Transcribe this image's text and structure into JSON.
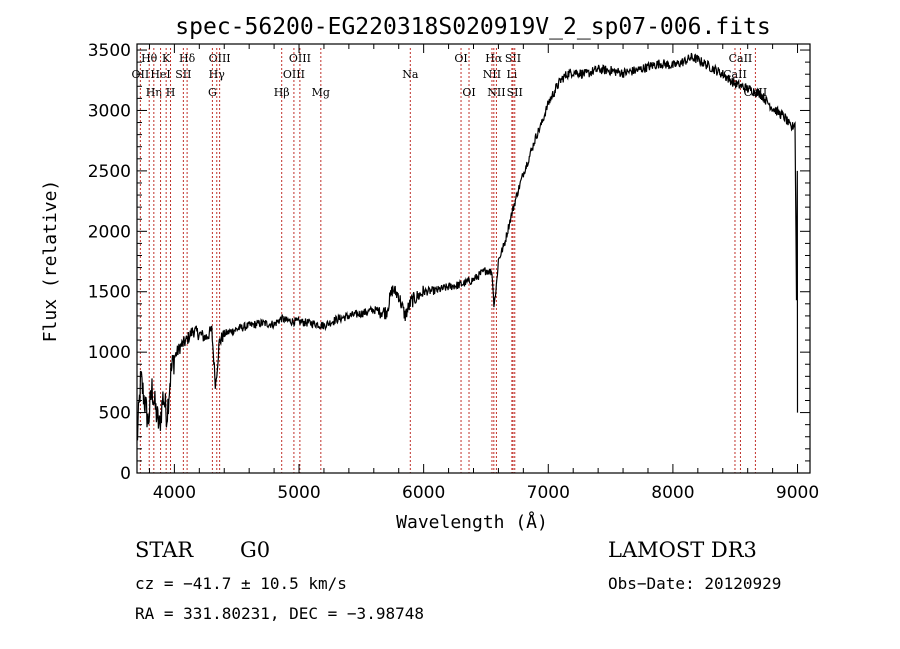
{
  "chart_data": {
    "type": "line",
    "title": "spec-56200-EG220318S020919V_2_sp07-006.fits",
    "xlabel": "Wavelength (Å)",
    "ylabel": "Flux (relative)",
    "xlim": [
      3700,
      9100
    ],
    "ylim": [
      0,
      3550
    ],
    "xticks": [
      4000,
      5000,
      6000,
      7000,
      8000,
      9000
    ],
    "yticks": [
      0,
      500,
      1000,
      1500,
      2000,
      2500,
      3000,
      3500
    ],
    "series": [
      {
        "name": "flux",
        "x": [
          3700,
          3730,
          3760,
          3790,
          3820,
          3850,
          3880,
          3910,
          3940,
          3970,
          4000,
          4050,
          4100,
          4150,
          4200,
          4250,
          4300,
          4330,
          4360,
          4400,
          4500,
          4600,
          4700,
          4800,
          4860,
          4900,
          5000,
          5100,
          5200,
          5300,
          5400,
          5500,
          5600,
          5700,
          5750,
          5800,
          5850,
          5900,
          6000,
          6100,
          6200,
          6300,
          6400,
          6500,
          6550,
          6563,
          6580,
          6600,
          6650,
          6700,
          6750,
          6800,
          6850,
          6900,
          6950,
          7000,
          7050,
          7100,
          7150,
          7200,
          7300,
          7400,
          7500,
          7600,
          7700,
          7800,
          7900,
          8000,
          8100,
          8150,
          8200,
          8250,
          8300,
          8400,
          8500,
          8550,
          8600,
          8700,
          8800,
          8900,
          8950,
          8980,
          9000
        ],
        "y": [
          250,
          780,
          600,
          420,
          700,
          520,
          380,
          640,
          480,
          820,
          960,
          1050,
          1100,
          1180,
          1150,
          1120,
          1180,
          720,
          1080,
          1150,
          1190,
          1220,
          1240,
          1230,
          1280,
          1260,
          1250,
          1240,
          1220,
          1270,
          1300,
          1320,
          1350,
          1330,
          1520,
          1470,
          1300,
          1420,
          1500,
          1510,
          1540,
          1560,
          1600,
          1680,
          1660,
          1400,
          1500,
          1760,
          1900,
          2120,
          2310,
          2480,
          2620,
          2780,
          2900,
          3060,
          3160,
          3250,
          3300,
          3320,
          3300,
          3340,
          3330,
          3310,
          3330,
          3360,
          3390,
          3370,
          3410,
          3440,
          3420,
          3390,
          3360,
          3300,
          3220,
          3200,
          3180,
          3140,
          3020,
          2940,
          2850,
          2900,
          500
        ]
      }
    ],
    "line_markers": [
      {
        "label": "Hθ",
        "wave": 3798,
        "row": 1
      },
      {
        "label": "OII",
        "wave": 3727,
        "row": 2
      },
      {
        "label": "Hη",
        "wave": 3835,
        "row": 3
      },
      {
        "label": "K",
        "wave": 3934,
        "row": 1
      },
      {
        "label": "HeI",
        "wave": 3889,
        "row": 2
      },
      {
        "label": "H",
        "wave": 3969,
        "row": 3
      },
      {
        "label": "Hδ",
        "wave": 4102,
        "row": 1
      },
      {
        "label": "SII",
        "wave": 4072,
        "row": 2
      },
      {
        "label": "OIII",
        "wave": 4363,
        "row": 1
      },
      {
        "label": "Hγ",
        "wave": 4340,
        "row": 2
      },
      {
        "label": "G",
        "wave": 4305,
        "row": 3
      },
      {
        "label": "OIII",
        "wave": 5007,
        "row": 1
      },
      {
        "label": "OIII",
        "wave": 4959,
        "row": 2
      },
      {
        "label": "Hβ",
        "wave": 4861,
        "row": 3
      },
      {
        "label": "Mg",
        "wave": 5175,
        "row": 3
      },
      {
        "label": "Na",
        "wave": 5893,
        "row": 2
      },
      {
        "label": "OI",
        "wave": 6300,
        "row": 1
      },
      {
        "label": "OI",
        "wave": 6364,
        "row": 3
      },
      {
        "label": "Hα",
        "wave": 6563,
        "row": 1
      },
      {
        "label": "NII",
        "wave": 6548,
        "row": 2
      },
      {
        "label": "NII",
        "wave": 6584,
        "row": 3
      },
      {
        "label": "SII",
        "wave": 6717,
        "row": 1
      },
      {
        "label": "Li",
        "wave": 6708,
        "row": 2
      },
      {
        "label": "SII",
        "wave": 6731,
        "row": 3
      },
      {
        "label": "CaII",
        "wave": 8542,
        "row": 1
      },
      {
        "label": "CaII",
        "wave": 8498,
        "row": 2
      },
      {
        "label": "CaII",
        "wave": 8662,
        "row": 3
      }
    ]
  },
  "info": {
    "class_label": "STAR",
    "subclass": "G0",
    "survey": "LAMOST DR3",
    "cz": "cz = −41.7 ± 10.5 km/s",
    "obs_date": "Obs−Date: 20120929",
    "coords": "RA = 331.80231, DEC =  −3.98748"
  },
  "colors": {
    "spectrum": "#000000",
    "marker": "#c0302a",
    "axis": "#000000"
  }
}
